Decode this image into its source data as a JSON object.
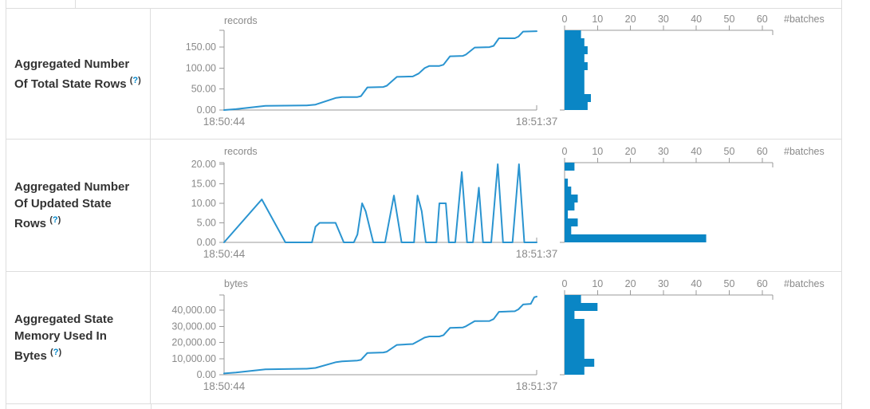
{
  "style": {
    "border_color": "#dddddd",
    "label_color": "#333333",
    "help_color": "#0088cc",
    "axis_color": "#999999",
    "axis_text_color": "#8a8a8a",
    "line_color": "#2a94d0",
    "bar_color": "#0a86c5"
  },
  "rows": [
    {
      "label": "Aggregated Number Of Total State Rows",
      "help": {
        "open": "(",
        "q": "?",
        "close": ")"
      },
      "timeline": {
        "unit": "records",
        "ymax": 190,
        "t_max": 53,
        "x_start": "18:50:44",
        "x_end": "18:51:37",
        "yticks": [
          {
            "v": 0,
            "label": "0.00"
          },
          {
            "v": 50,
            "label": "50.00"
          },
          {
            "v": 100,
            "label": "100.00"
          },
          {
            "v": 150,
            "label": "150.00"
          }
        ],
        "points": [
          [
            0,
            0
          ],
          [
            2,
            2
          ],
          [
            7,
            10
          ],
          [
            14,
            11
          ],
          [
            15.5,
            13
          ],
          [
            19,
            29
          ],
          [
            20,
            31
          ],
          [
            22.6,
            31
          ],
          [
            23.2,
            33
          ],
          [
            24.3,
            54
          ],
          [
            27,
            55
          ],
          [
            27.6,
            58
          ],
          [
            29.3,
            79
          ],
          [
            32,
            80
          ],
          [
            33,
            87
          ],
          [
            34,
            100
          ],
          [
            34.8,
            105
          ],
          [
            36.5,
            105
          ],
          [
            37.2,
            108
          ],
          [
            38.3,
            128
          ],
          [
            40.5,
            129
          ],
          [
            41,
            132
          ],
          [
            42.5,
            149
          ],
          [
            45,
            150
          ],
          [
            45.7,
            153
          ],
          [
            46.6,
            171
          ],
          [
            49.3,
            171
          ],
          [
            49.9,
            175
          ],
          [
            50.7,
            187
          ],
          [
            53,
            188
          ]
        ]
      },
      "histogram": {
        "unit": "#batches",
        "axis_max": 63.2,
        "ticks": [
          {
            "v": 0,
            "label": "0"
          },
          {
            "v": 10,
            "label": "10"
          },
          {
            "v": 20,
            "label": "20"
          },
          {
            "v": 30,
            "label": "30"
          },
          {
            "v": 40,
            "label": "40"
          },
          {
            "v": 50,
            "label": "50"
          },
          {
            "v": 60,
            "label": "60"
          }
        ],
        "bins": [
          5,
          6,
          7,
          6,
          7,
          6,
          6,
          6,
          8,
          7
        ]
      }
    },
    {
      "label": "Aggregated Number Of Updated State Rows",
      "help": {
        "open": "(",
        "q": "?",
        "close": ")"
      },
      "timeline": {
        "unit": "records",
        "ymax": 20.4,
        "t_max": 53,
        "x_start": "18:50:44",
        "x_end": "18:51:37",
        "yticks": [
          {
            "v": 0,
            "label": "0.00"
          },
          {
            "v": 5,
            "label": "5.00"
          },
          {
            "v": 10,
            "label": "10.00"
          },
          {
            "v": 15,
            "label": "15.00"
          },
          {
            "v": 20,
            "label": "20.00"
          }
        ],
        "points": [
          [
            0,
            0
          ],
          [
            6.4,
            11
          ],
          [
            10.4,
            0
          ],
          [
            14.9,
            0
          ],
          [
            15.5,
            4
          ],
          [
            16.2,
            5
          ],
          [
            18.9,
            5
          ],
          [
            20.3,
            0
          ],
          [
            22,
            0
          ],
          [
            22.6,
            2
          ],
          [
            23.4,
            10
          ],
          [
            24,
            8
          ],
          [
            25.3,
            0
          ],
          [
            27.3,
            0
          ],
          [
            28.8,
            12
          ],
          [
            30.1,
            0
          ],
          [
            32.2,
            0
          ],
          [
            32.8,
            12
          ],
          [
            33.5,
            8
          ],
          [
            34.2,
            0
          ],
          [
            36,
            0
          ],
          [
            36.5,
            10
          ],
          [
            37.6,
            10
          ],
          [
            38.1,
            0
          ],
          [
            39.2,
            0
          ],
          [
            40.3,
            18
          ],
          [
            41.2,
            0
          ],
          [
            42.2,
            0
          ],
          [
            43.2,
            14
          ],
          [
            43.9,
            0
          ],
          [
            45.3,
            0
          ],
          [
            46.4,
            20
          ],
          [
            47.3,
            0
          ],
          [
            48.9,
            0
          ],
          [
            50,
            20
          ],
          [
            50.9,
            0
          ],
          [
            53,
            0
          ]
        ]
      },
      "histogram": {
        "unit": "#batches",
        "axis_max": 63.2,
        "ticks": [
          {
            "v": 0,
            "label": "0"
          },
          {
            "v": 10,
            "label": "10"
          },
          {
            "v": 20,
            "label": "20"
          },
          {
            "v": 30,
            "label": "30"
          },
          {
            "v": 40,
            "label": "40"
          },
          {
            "v": 50,
            "label": "50"
          },
          {
            "v": 60,
            "label": "60"
          }
        ],
        "bins": [
          3,
          0,
          1,
          2,
          4,
          3,
          1,
          4,
          2,
          43
        ]
      }
    },
    {
      "label": "Aggregated State Memory Used In Bytes",
      "help": {
        "open": "(",
        "q": "?",
        "close": ")"
      },
      "timeline": {
        "unit": "bytes",
        "ymax": 49400,
        "t_max": 53,
        "x_start": "18:50:44",
        "x_end": "18:51:37",
        "yticks": [
          {
            "v": 0,
            "label": "0.00"
          },
          {
            "v": 10000,
            "label": "10,000.00"
          },
          {
            "v": 20000,
            "label": "20,000.00"
          },
          {
            "v": 30000,
            "label": "30,000.00"
          },
          {
            "v": 40000,
            "label": "40,000.00"
          }
        ],
        "points": [
          [
            0,
            800
          ],
          [
            2,
            1400
          ],
          [
            7,
            3300
          ],
          [
            14,
            3700
          ],
          [
            15.5,
            4200
          ],
          [
            19,
            7800
          ],
          [
            20,
            8300
          ],
          [
            22.6,
            8800
          ],
          [
            23.2,
            9200
          ],
          [
            24.3,
            13500
          ],
          [
            27,
            13800
          ],
          [
            27.6,
            14300
          ],
          [
            29.3,
            18500
          ],
          [
            31,
            18800
          ],
          [
            32,
            19000
          ],
          [
            33,
            21000
          ],
          [
            34,
            23000
          ],
          [
            34.8,
            23700
          ],
          [
            36.5,
            23700
          ],
          [
            37.2,
            24500
          ],
          [
            38.3,
            29000
          ],
          [
            40.5,
            29300
          ],
          [
            41,
            30000
          ],
          [
            42.5,
            33200
          ],
          [
            45,
            33300
          ],
          [
            45.7,
            34500
          ],
          [
            46.6,
            39000
          ],
          [
            49.3,
            39300
          ],
          [
            49.9,
            40500
          ],
          [
            50.7,
            43500
          ],
          [
            52,
            43900
          ],
          [
            52.6,
            48000
          ],
          [
            53,
            48400
          ]
        ]
      },
      "histogram": {
        "unit": "#batches",
        "axis_max": 63.2,
        "ticks": [
          {
            "v": 0,
            "label": "0"
          },
          {
            "v": 10,
            "label": "10"
          },
          {
            "v": 20,
            "label": "20"
          },
          {
            "v": 30,
            "label": "30"
          },
          {
            "v": 40,
            "label": "40"
          },
          {
            "v": 50,
            "label": "50"
          },
          {
            "v": 60,
            "label": "60"
          }
        ],
        "bins": [
          5,
          10,
          3,
          6,
          6,
          6,
          6,
          6,
          9,
          6
        ]
      }
    }
  ],
  "chart_data": [
    {
      "type": "line",
      "title": "Aggregated Number Of Total State Rows timeline",
      "ylabel": "records",
      "x": [
        "18:50:44",
        "18:51:37"
      ],
      "ylim": [
        0,
        190
      ],
      "values_note": "staircase from 0 to ~188 records over 53s",
      "values": [
        [
          0,
          0
        ],
        [
          7,
          10
        ],
        [
          19,
          29
        ],
        [
          24.3,
          54
        ],
        [
          29.3,
          79
        ],
        [
          34.8,
          105
        ],
        [
          38.3,
          128
        ],
        [
          42.5,
          149
        ],
        [
          46.6,
          171
        ],
        [
          50.7,
          187
        ],
        [
          53,
          188
        ]
      ]
    },
    {
      "type": "bar",
      "title": "Aggregated Number Of Total State Rows histogram (#batches per value bin)",
      "xlabel": "#batches",
      "xlim": [
        0,
        63.2
      ],
      "values": [
        5,
        6,
        7,
        6,
        7,
        6,
        6,
        6,
        8,
        7
      ]
    },
    {
      "type": "line",
      "title": "Aggregated Number Of Updated State Rows timeline",
      "ylabel": "records",
      "x": [
        "18:50:44",
        "18:51:37"
      ],
      "ylim": [
        0,
        20
      ],
      "values_note": "spiky series, peaks 11,5,10,12,12,10,18,14,20,20 returning to 0",
      "values": [
        [
          0,
          0
        ],
        [
          6.4,
          11
        ],
        [
          10.4,
          0
        ],
        [
          16.2,
          5
        ],
        [
          20.3,
          0
        ],
        [
          23.4,
          10
        ],
        [
          25.3,
          0
        ],
        [
          28.8,
          12
        ],
        [
          30.1,
          0
        ],
        [
          32.8,
          12
        ],
        [
          34.2,
          0
        ],
        [
          37,
          10
        ],
        [
          38.1,
          0
        ],
        [
          40.3,
          18
        ],
        [
          41.2,
          0
        ],
        [
          43.2,
          14
        ],
        [
          43.9,
          0
        ],
        [
          46.4,
          20
        ],
        [
          47.3,
          0
        ],
        [
          50,
          20
        ],
        [
          50.9,
          0
        ],
        [
          53,
          0
        ]
      ]
    },
    {
      "type": "bar",
      "title": "Aggregated Number Of Updated State Rows histogram (#batches per value bin)",
      "xlabel": "#batches",
      "xlim": [
        0,
        63.2
      ],
      "values": [
        3,
        0,
        1,
        2,
        4,
        3,
        1,
        4,
        2,
        43
      ]
    },
    {
      "type": "line",
      "title": "Aggregated State Memory Used In Bytes timeline",
      "ylabel": "bytes",
      "x": [
        "18:50:44",
        "18:51:37"
      ],
      "ylim": [
        0,
        49400
      ],
      "values_note": "staircase from ~800 to ~48400 bytes over 53s",
      "values": [
        [
          0,
          800
        ],
        [
          7,
          3300
        ],
        [
          19,
          7800
        ],
        [
          24.3,
          13500
        ],
        [
          29.3,
          18500
        ],
        [
          34.8,
          23700
        ],
        [
          38.3,
          29000
        ],
        [
          42.5,
          33200
        ],
        [
          46.6,
          39000
        ],
        [
          50.7,
          43500
        ],
        [
          53,
          48400
        ]
      ]
    },
    {
      "type": "bar",
      "title": "Aggregated State Memory Used In Bytes histogram (#batches per value bin)",
      "xlabel": "#batches",
      "xlim": [
        0,
        63.2
      ],
      "values": [
        5,
        10,
        3,
        6,
        6,
        6,
        6,
        6,
        9,
        6
      ]
    }
  ]
}
